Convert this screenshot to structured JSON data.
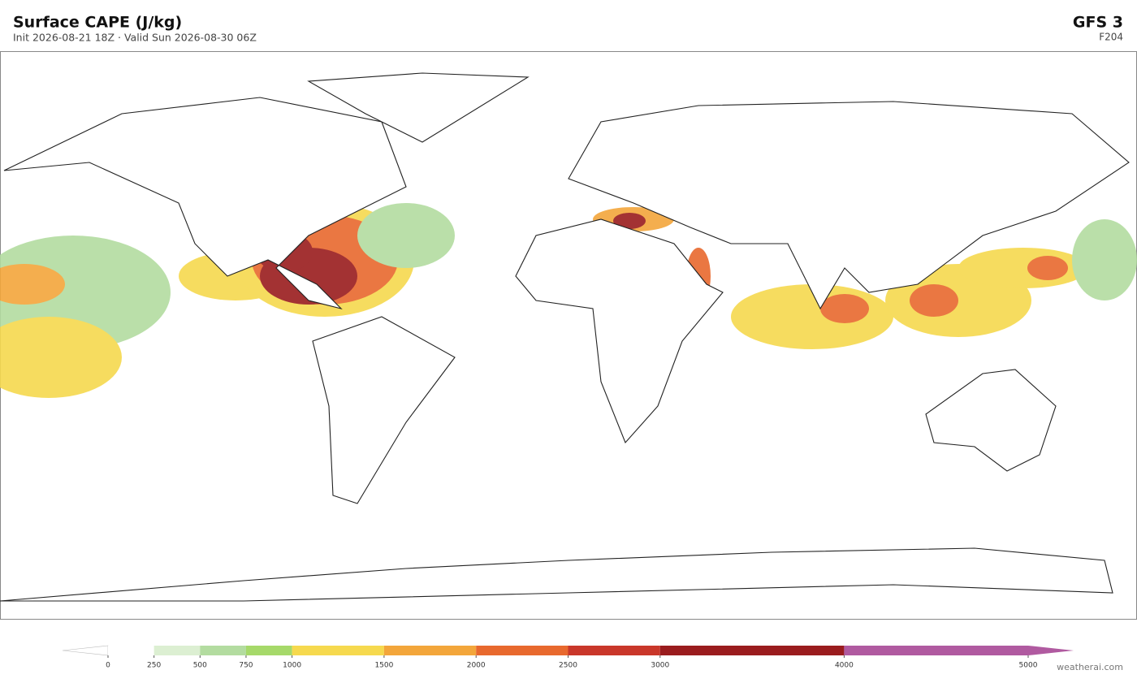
{
  "header": {
    "title": "Surface CAPE  (J/kg)",
    "subtitle": "Init 2026-08-21 18Z  ·  Valid Sun 2026-08-30 06Z",
    "model": "GFS  3",
    "forecast_hour": "F204"
  },
  "colorbar": {
    "lim": [
      0,
      5000
    ],
    "ticks": [
      0,
      250,
      500,
      750,
      1000,
      1500,
      2000,
      2500,
      3000,
      4000,
      5000
    ],
    "colors": [
      "#ffffff",
      "#dcefd2",
      "#b3dca0",
      "#a6d96a",
      "#f6d94e",
      "#f3a63b",
      "#e8692e",
      "#c9372a",
      "#9a1c1e",
      "#b05aa0"
    ],
    "under_color": "#ffffff",
    "over_color": "#b05aa0"
  },
  "footer": {
    "credit": "weatherai.com"
  }
}
